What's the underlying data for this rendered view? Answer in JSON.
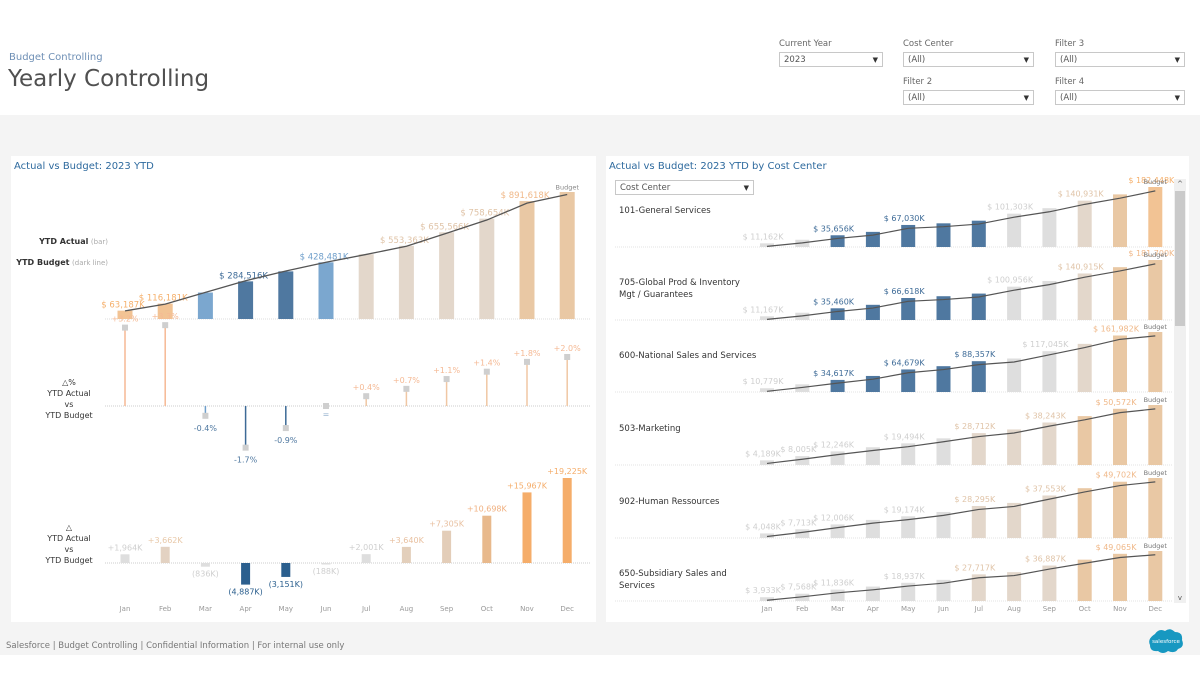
{
  "header": {
    "subtitle": "Budget Controlling",
    "title": "Yearly Controlling"
  },
  "filters": [
    {
      "label": "Current Year",
      "value": "2023"
    },
    {
      "label": "Cost Center",
      "value": "(All)"
    },
    {
      "label": "Filter 3",
      "value": "(All)"
    },
    {
      "label": "Filter 2",
      "value": "(All)"
    },
    {
      "label": "Filter 4",
      "value": "(All)"
    }
  ],
  "left_panel": {
    "title": "Actual vs Budget: 2023 YTD",
    "legend_actual": "YTD Actual",
    "legend_actual_note": "(bar)",
    "legend_budget": "YTD Budget",
    "legend_budget_note": "(dark line)",
    "pct_label": [
      "△%",
      "YTD Actual",
      "vs",
      "YTD Budget"
    ],
    "abs_label": [
      "△",
      "YTD Actual",
      "vs",
      "YTD Budget"
    ],
    "budget_tag": "Budget"
  },
  "right_panel": {
    "title": "Actual vs Budget: 2023 YTD by Cost Center",
    "dropdown_label": "Cost Center",
    "budget_tag": "Budget",
    "scroll_up": "^",
    "scroll_down": "v"
  },
  "footer": {
    "text": "Salesforce | Budget Controlling | Confidential Information | For internal use only",
    "logo_text": "salesforce"
  },
  "colors": {
    "orange_strong": "#f5b06c",
    "orange": "#f2c394",
    "tan": "#e9c8a4",
    "beige": "#e3d7cb",
    "gray": "#dedede",
    "blue_light": "#7ba7cf",
    "blue": "#4f78a0",
    "blue_dark": "#2b5f8e",
    "line": "#555555"
  },
  "chart_data": [
    {
      "type": "bar",
      "title": "Actual vs Budget: 2023 YTD",
      "categories": [
        "Jan",
        "Feb",
        "Mar",
        "Apr",
        "May",
        "Jun",
        "Jul",
        "Aug",
        "Sep",
        "Oct",
        "Nov",
        "Dec"
      ],
      "series": [
        {
          "name": "YTD Actual",
          "values": [
            63187,
            116181,
            200000,
            284516,
            360000,
            428481,
            490000,
            553363,
            655566,
            758654,
            891618,
            960000
          ]
        },
        {
          "name": "YTD Budget",
          "values": [
            61223,
            112519,
            200836,
            289403,
            363151,
            428669,
            487999,
            549723,
            648261,
            747956,
            875651,
            940775
          ]
        }
      ],
      "labels": [
        "$ 63,187K",
        "$ 116,181K",
        "",
        "$ 284,516K",
        "",
        "$ 428,481K",
        "",
        "$ 553,363K",
        "$ 655,566K",
        "$ 758,654K",
        "$ 891,618K",
        ""
      ],
      "bar_colors": [
        "orange",
        "orange",
        "blue_light",
        "blue",
        "blue",
        "blue_light",
        "beige",
        "beige",
        "beige",
        "beige",
        "tan",
        "tan"
      ],
      "ylabel": "YTD Actual (bar) / YTD Budget (dark line)",
      "unit": "K$"
    },
    {
      "type": "bar",
      "title": "△% YTD Actual vs YTD Budget",
      "categories": [
        "Jan",
        "Feb",
        "Mar",
        "Apr",
        "May",
        "Jun",
        "Jul",
        "Aug",
        "Sep",
        "Oct",
        "Nov",
        "Dec"
      ],
      "values": [
        3.2,
        3.3,
        -0.4,
        -1.7,
        -0.9,
        0.0,
        0.4,
        0.7,
        1.1,
        1.4,
        1.8,
        2.0
      ],
      "labels": [
        "+3.2%",
        "+3.3%",
        "-0.4%",
        "-1.7%",
        "-0.9%",
        "=",
        "+0.4%",
        "+0.7%",
        "+1.1%",
        "+1.4%",
        "+1.8%",
        "+2.0%"
      ],
      "unit": "%"
    },
    {
      "type": "bar",
      "title": "△ YTD Actual vs YTD Budget",
      "categories": [
        "Jan",
        "Feb",
        "Mar",
        "Apr",
        "May",
        "Jun",
        "Jul",
        "Aug",
        "Sep",
        "Oct",
        "Nov",
        "Dec"
      ],
      "values": [
        1964,
        3662,
        -836,
        -4887,
        -3151,
        -188,
        2001,
        3640,
        7305,
        10698,
        15967,
        19225
      ],
      "labels": [
        "+1,964K",
        "+3,662K",
        "(836K)",
        "(4,887K)",
        "(3,151K)",
        "(188K)",
        "+2,001K",
        "+3,640K",
        "+7,305K",
        "+10,698K",
        "+15,967K",
        "+19,225K"
      ],
      "unit": "K$"
    },
    {
      "type": "bar",
      "title": "Actual vs Budget: 2023 YTD by Cost Center",
      "categories": [
        "Jan",
        "Feb",
        "Mar",
        "Apr",
        "May",
        "Jun",
        "Jul",
        "Aug",
        "Sep",
        "Oct",
        "Nov",
        "Dec"
      ],
      "series": [
        {
          "name": "101-General Services",
          "values": [
            11162,
            22000,
            35656,
            46000,
            67030,
            72000,
            80000,
            101303,
            118000,
            140931,
            160000,
            182448
          ],
          "labels": [
            "$ 11,162K",
            "",
            "$ 35,656K",
            "",
            "$ 67,030K",
            "",
            "",
            "$ 101,303K",
            "",
            "$ 140,931K",
            "",
            "$ 182,448K"
          ],
          "colors": [
            "gray",
            "gray",
            "blue",
            "blue",
            "blue",
            "blue",
            "blue",
            "gray",
            "gray",
            "beige",
            "tan",
            "orange"
          ]
        },
        {
          "name": "705-Global Prod & Inventory Mgt / Guarantees",
          "values": [
            11167,
            22000,
            35460,
            46000,
            66618,
            72000,
            80000,
            100956,
            118000,
            140915,
            160000,
            181700
          ],
          "labels": [
            "$ 11,167K",
            "",
            "$ 35,460K",
            "",
            "$ 66,618K",
            "",
            "",
            "$ 100,956K",
            "",
            "$ 140,915K",
            "",
            "$ 181,700K"
          ],
          "colors": [
            "gray",
            "gray",
            "blue",
            "blue",
            "blue",
            "blue",
            "blue",
            "gray",
            "gray",
            "beige",
            "tan",
            "tan"
          ]
        },
        {
          "name": "600-National Sales and Services",
          "values": [
            10779,
            22000,
            34617,
            46000,
            64679,
            74000,
            88357,
            96000,
            117045,
            138000,
            161982,
            172000
          ],
          "labels": [
            "$ 10,779K",
            "",
            "$ 34,617K",
            "",
            "$ 64,679K",
            "",
            "$ 88,357K",
            "",
            "$ 117,045K",
            "",
            "$ 161,982K",
            ""
          ],
          "colors": [
            "gray",
            "gray",
            "blue",
            "blue",
            "blue",
            "blue",
            "blue",
            "gray",
            "gray",
            "beige",
            "tan",
            "tan"
          ]
        },
        {
          "name": "503-Marketing",
          "values": [
            4189,
            8005,
            12246,
            16000,
            19494,
            24000,
            28712,
            32000,
            38243,
            44000,
            50572,
            54000
          ],
          "labels": [
            "$ 4,189K",
            "$ 8,005K",
            "$ 12,246K",
            "",
            "$ 19,494K",
            "",
            "$ 28,712K",
            "",
            "$ 38,243K",
            "",
            "$ 50,572K",
            ""
          ],
          "colors": [
            "gray",
            "gray",
            "gray",
            "gray",
            "gray",
            "gray",
            "beige",
            "beige",
            "beige",
            "tan",
            "tan",
            "tan"
          ]
        },
        {
          "name": "902-Human Ressources",
          "values": [
            4048,
            7713,
            12006,
            16000,
            19174,
            23000,
            28295,
            31000,
            37553,
            44000,
            49702,
            53000
          ],
          "labels": [
            "$ 4,048K",
            "$ 7,713K",
            "$ 12,006K",
            "",
            "$ 19,174K",
            "",
            "$ 28,295K",
            "",
            "$ 37,553K",
            "",
            "$ 49,702K",
            ""
          ],
          "colors": [
            "gray",
            "gray",
            "gray",
            "gray",
            "gray",
            "gray",
            "beige",
            "beige",
            "beige",
            "tan",
            "tan",
            "tan"
          ]
        },
        {
          "name": "650-Subsidiary Sales and Services",
          "values": [
            3933,
            7568,
            11836,
            15000,
            18937,
            22000,
            27717,
            30000,
            36887,
            43000,
            49065,
            52000
          ],
          "labels": [
            "$ 3,933K",
            "$ 7,568K",
            "$ 11,836K",
            "",
            "$ 18,937K",
            "",
            "$ 27,717K",
            "",
            "$ 36,887K",
            "",
            "$ 49,065K",
            ""
          ],
          "colors": [
            "gray",
            "gray",
            "gray",
            "gray",
            "gray",
            "gray",
            "beige",
            "beige",
            "beige",
            "tan",
            "tan",
            "tan"
          ]
        }
      ],
      "unit": "K$"
    }
  ]
}
